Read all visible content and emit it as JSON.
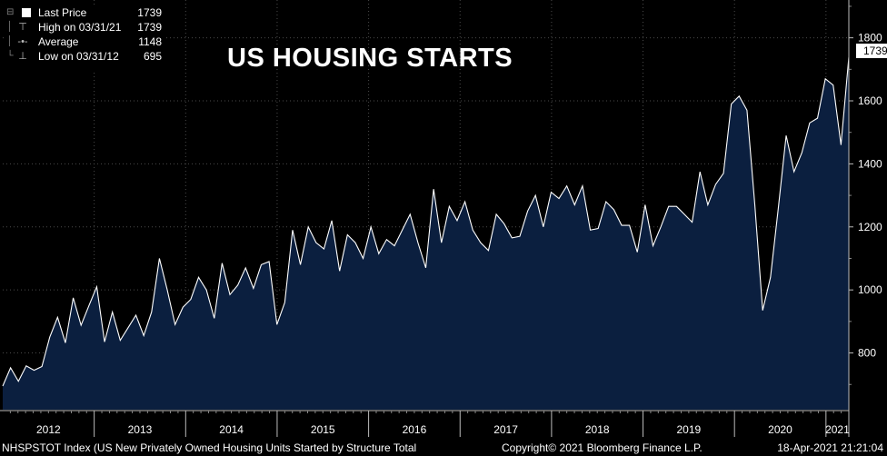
{
  "title": "US HOUSING STARTS",
  "legend": {
    "rows": [
      {
        "label": "Last Price",
        "value": "1739"
      },
      {
        "label": "High on 03/31/21",
        "value": "1739"
      },
      {
        "label": "Average",
        "value": "1148"
      },
      {
        "label": "Low on 03/31/12",
        "value": "695"
      }
    ]
  },
  "last_tag": "1739",
  "footer": {
    "source": "NHSPSTOT Index (US New Privately Owned Housing Units Started by Structure Total",
    "copyright": "Copyright© 2021 Bloomberg Finance L.P.",
    "timestamp": "18-Apr-2021 21:21:04"
  },
  "colors": {
    "background": "#000000",
    "area_fill": "#0b1f3f",
    "line": "#ffffff",
    "grid": "#4a4a4a"
  },
  "chart_data": {
    "type": "area",
    "title": "US HOUSING STARTS",
    "xlabel": "",
    "ylabel": "",
    "ylim": [
      620,
      1920
    ],
    "y_ticks": [
      800,
      1000,
      1200,
      1400,
      1600,
      1800
    ],
    "x_range": [
      2012.0,
      2021.25
    ],
    "year_labels": [
      "2012",
      "2013",
      "2014",
      "2015",
      "2016",
      "2017",
      "2018",
      "2019",
      "2020",
      "2021"
    ],
    "series": [
      {
        "name": "Last Price",
        "values": [
          695,
          753,
          710,
          759,
          745,
          757,
          850,
          913,
          832,
          975,
          888,
          950,
          1010,
          835,
          930,
          840,
          880,
          920,
          855,
          930,
          1100,
          1000,
          890,
          945,
          970,
          1040,
          1000,
          910,
          1085,
          985,
          1015,
          1070,
          1005,
          1080,
          1090,
          890,
          960,
          1190,
          1080,
          1200,
          1150,
          1130,
          1220,
          1060,
          1175,
          1150,
          1100,
          1200,
          1115,
          1160,
          1140,
          1190,
          1240,
          1150,
          1070,
          1320,
          1150,
          1265,
          1220,
          1280,
          1190,
          1150,
          1125,
          1240,
          1210,
          1165,
          1170,
          1250,
          1300,
          1200,
          1310,
          1290,
          1330,
          1270,
          1330,
          1190,
          1195,
          1280,
          1255,
          1205,
          1205,
          1120,
          1270,
          1140,
          1200,
          1265,
          1265,
          1240,
          1215,
          1375,
          1270,
          1335,
          1370,
          1590,
          1615,
          1570,
          1270,
          935,
          1040,
          1260,
          1490,
          1375,
          1435,
          1530,
          1545,
          1670,
          1650,
          1460,
          1739
        ]
      }
    ],
    "annotations": [
      {
        "label": "High on 03/31/21",
        "value": 1739
      },
      {
        "label": "Average",
        "value": 1148
      },
      {
        "label": "Low on 03/31/12",
        "value": 695
      }
    ]
  }
}
